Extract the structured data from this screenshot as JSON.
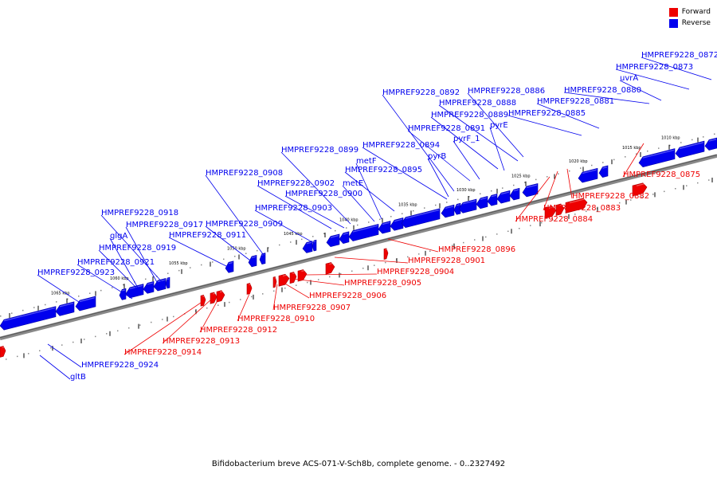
{
  "legend": {
    "forward_label": "Forward",
    "reverse_label": "Reverse",
    "forward_color": "#ee0000",
    "reverse_color": "#0000ee"
  },
  "caption": "Bifidobacterium breve ACS-071-V-Sch8b, complete genome. - 0..2327492",
  "ticks": [
    "1010 kbp",
    "1015 kbp",
    "1020 kbp",
    "1025 kbp",
    "1030 kbp",
    "1035 kbp",
    "1040 kbp",
    "1045 kbp",
    "1050 kbp",
    "1055 kbp",
    "1060 kbp",
    "1065 kbp"
  ],
  "reverse_genes": [
    "HMPREF9228_0872",
    "HMPREF9228_0873",
    "uvrA",
    "HMPREF9228_0880",
    "HMPREF9228_0881",
    "HMPREF9228_0885",
    "HMPREF9228_0886",
    "HMPREF9228_0888",
    "HMPREF9228_0889",
    "pyrE",
    "HMPREF9228_0891",
    "pyrF_1",
    "HMPREF9228_0892",
    "HMPREF9228_0894",
    "pyrB",
    "HMPREF9228_0895",
    "metF",
    "metE",
    "HMPREF9228_0899",
    "HMPREF9228_0902",
    "HMPREF9228_0900",
    "HMPREF9228_0903",
    "HMPREF9228_0908",
    "HMPREF9228_0909",
    "HMPREF9228_0911",
    "HMPREF9228_0918",
    "HMPREF9228_0917",
    "glgA",
    "HMPREF9228_0919",
    "HMPREF9228_0921",
    "HMPREF9228_0923",
    "HMPREF9228_0924",
    "gltB"
  ],
  "forward_genes": [
    "HMPREF9228_0875",
    "HMPREF9228_0882",
    "HMPREF9228_0883",
    "HMPREF9228_0884",
    "HMPREF9228_0896",
    "HMPREF9228_0901",
    "HMPREF9228_0904",
    "HMPREF9228_0905",
    "HMPREF9228_0906",
    "HMPREF9228_0907",
    "HMPREF9228_0910",
    "HMPREF9228_0912",
    "HMPREF9228_0913",
    "HMPREF9228_0914"
  ]
}
